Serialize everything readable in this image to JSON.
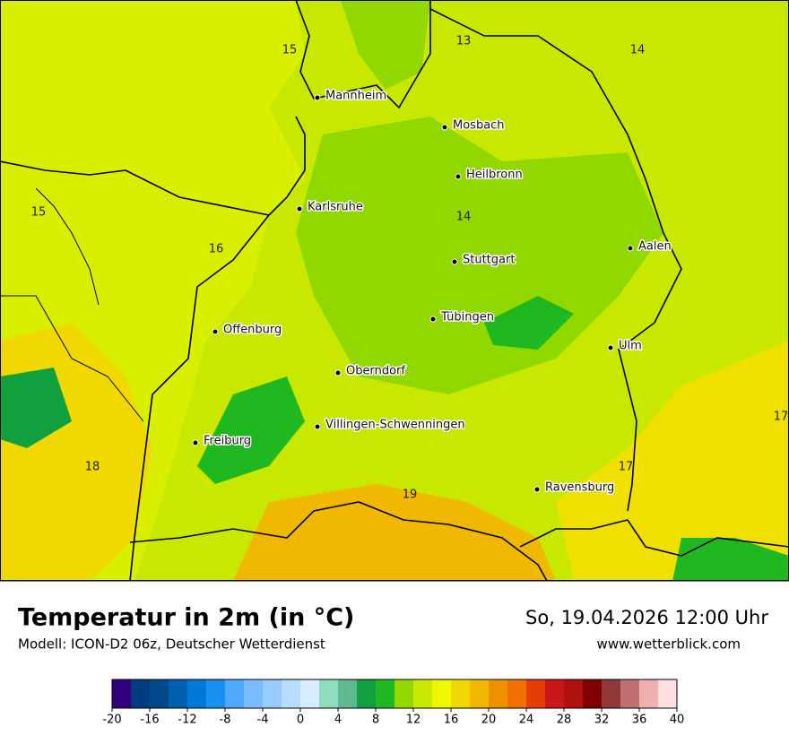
{
  "map": {
    "cities": [
      "Mannheim",
      "Mosbach",
      "Heilbronn",
      "Karlsruhe",
      "Stuttgart",
      "Aalen",
      "Tübingen",
      "Ulm",
      "Offenburg",
      "Oberndorf",
      "Villingen-Schwenningen",
      "Freiburg",
      "Ravensburg"
    ],
    "isotherm_labels": [
      15,
      13,
      14,
      15,
      16,
      14,
      17,
      18,
      19,
      17
    ]
  },
  "footer": {
    "title": "Temperatur in 2m (in °C)",
    "subtitle": "Modell: ICON-D2 06z, Deutscher Wetterdienst",
    "datetime": "So, 19.04.2026 12:00 Uhr",
    "website": "www.wetterblick.com"
  },
  "colorbar": {
    "range": [
      -20,
      40
    ],
    "ticks": [
      -20,
      -16,
      -12,
      -8,
      -4,
      0,
      4,
      8,
      12,
      16,
      20,
      24,
      28,
      32,
      36,
      40
    ],
    "colors": [
      "#32007f",
      "#003d7f",
      "#004a8a",
      "#0060b0",
      "#0078d8",
      "#1890f0",
      "#50a8ff",
      "#78bcff",
      "#98ccff",
      "#b8dcff",
      "#d8ecff",
      "#90dcc0",
      "#60b890",
      "#10a040",
      "#20b820",
      "#90d800",
      "#c8e800",
      "#f0f800",
      "#f0d800",
      "#f0b800",
      "#f09000",
      "#f07000",
      "#e83c08",
      "#c81818",
      "#b01010",
      "#800000",
      "#903838",
      "#c07070",
      "#f0b0b0",
      "#ffe0e0"
    ]
  }
}
